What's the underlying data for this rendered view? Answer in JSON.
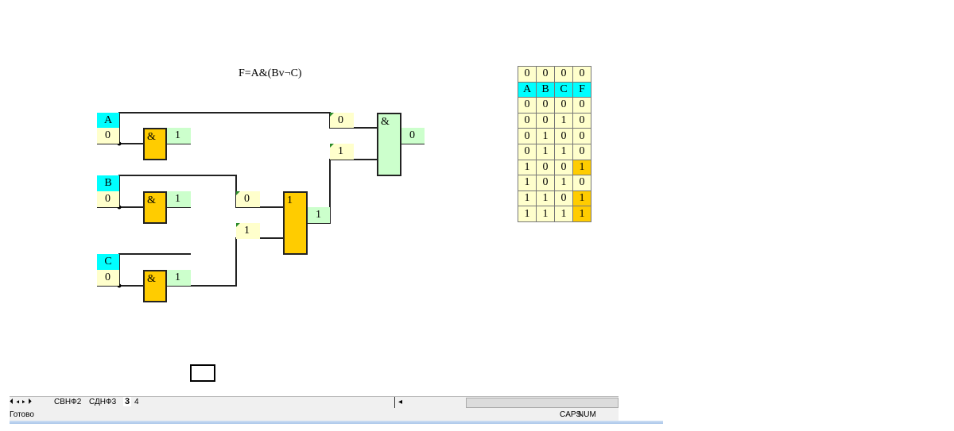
{
  "formula": "F=A&(Bv¬C)",
  "inputs": [
    {
      "name": "A",
      "value": "0",
      "not_out": "1"
    },
    {
      "name": "B",
      "value": "0",
      "not_out": "1"
    },
    {
      "name": "C",
      "value": "0",
      "not_out": "1"
    }
  ],
  "gates": {
    "not_symbol": "&",
    "or_symbol": "1",
    "and_symbol": "&"
  },
  "or_gate": {
    "in1": "0",
    "in2": "1",
    "out": "1"
  },
  "and_gate": {
    "in1": "0",
    "in2": "1",
    "out": "0"
  },
  "truth_table": {
    "current": [
      "0",
      "0",
      "0",
      "0"
    ],
    "headers": [
      "A",
      "B",
      "C",
      "F"
    ],
    "rows": [
      [
        "0",
        "0",
        "0",
        "0"
      ],
      [
        "0",
        "0",
        "1",
        "0"
      ],
      [
        "0",
        "1",
        "0",
        "0"
      ],
      [
        "0",
        "1",
        "1",
        "0"
      ],
      [
        "1",
        "0",
        "0",
        "1"
      ],
      [
        "1",
        "0",
        "1",
        "0"
      ],
      [
        "1",
        "1",
        "0",
        "1"
      ],
      [
        "1",
        "1",
        "1",
        "1"
      ]
    ]
  },
  "sheet_tabs": [
    "СВНФ2",
    "СДНФ3",
    "3",
    "4"
  ],
  "active_tab": "3",
  "status": {
    "ready": "Готово",
    "caps": "CAPS",
    "num": "NUM"
  },
  "colors": {
    "input_label": "#00ffff",
    "value": "#ffffcc",
    "output": "#ccffcc",
    "gate_or_not": "#ffcc00",
    "gate_and": "#ccffcc"
  }
}
